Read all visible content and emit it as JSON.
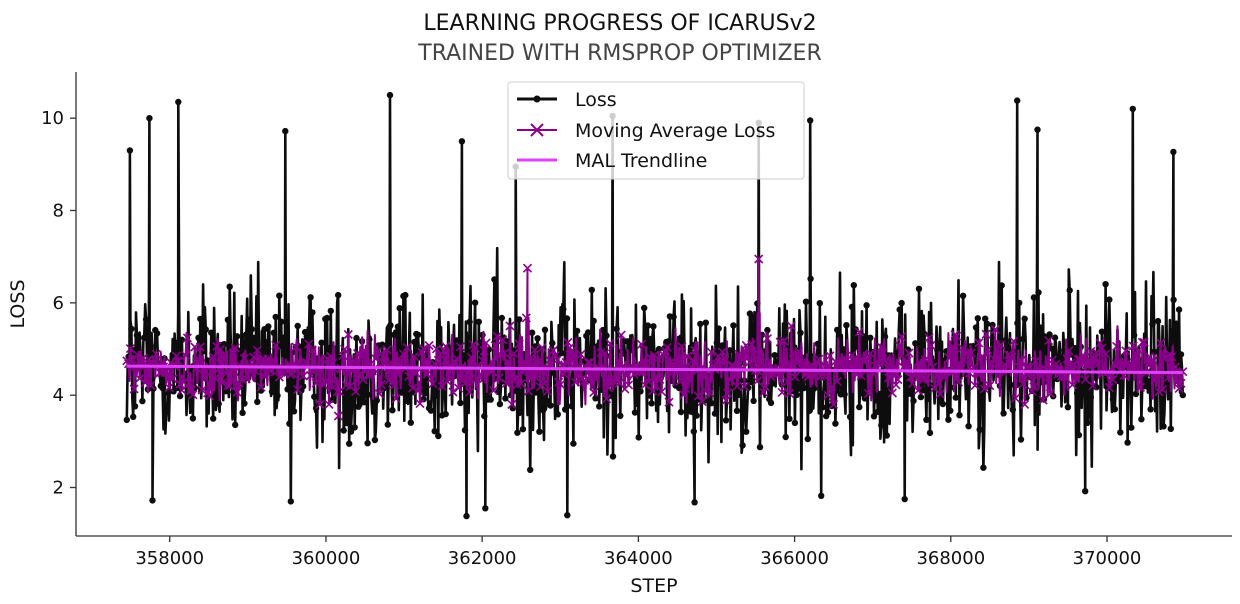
{
  "chart_data": {
    "type": "line",
    "title": "LEARNING PROGRESS OF ICARUSv2",
    "subtitle": "TRAINED WITH RMSPROP OPTIMIZER",
    "xlabel": "STEP",
    "ylabel": "LOSS",
    "xlim": [
      356800,
      371600
    ],
    "ylim": [
      0.95,
      11.0
    ],
    "x_ticks": [
      358000,
      360000,
      362000,
      364000,
      366000,
      368000,
      370000
    ],
    "x_tick_labels": [
      "358000",
      "360000",
      "362000",
      "364000",
      "366000",
      "368000",
      "370000"
    ],
    "y_ticks": [
      2,
      4,
      6,
      8,
      10
    ],
    "y_tick_labels": [
      "2",
      "4",
      "6",
      "8",
      "10"
    ],
    "grid": false,
    "legend_position": "top-center",
    "x_range": [
      357450,
      370970
    ],
    "series": [
      {
        "name": "Loss",
        "color": "#0d0d0d",
        "marker": "circle",
        "mean": 4.6,
        "min": 1.38,
        "max": 10.5,
        "typical_range": [
          2.5,
          7.2
        ],
        "peaks": [
          {
            "x": 357490,
            "y": 9.3
          },
          {
            "x": 357740,
            "y": 10.0
          },
          {
            "x": 358110,
            "y": 10.35
          },
          {
            "x": 359480,
            "y": 9.72
          },
          {
            "x": 360820,
            "y": 10.5
          },
          {
            "x": 361740,
            "y": 9.5
          },
          {
            "x": 362430,
            "y": 8.95
          },
          {
            "x": 363670,
            "y": 10.05
          },
          {
            "x": 365540,
            "y": 9.9
          },
          {
            "x": 366200,
            "y": 9.95
          },
          {
            "x": 368850,
            "y": 10.38
          },
          {
            "x": 369110,
            "y": 9.75
          },
          {
            "x": 370330,
            "y": 10.2
          },
          {
            "x": 370850,
            "y": 9.27
          }
        ],
        "troughs": [
          {
            "x": 357780,
            "y": 1.72
          },
          {
            "x": 359550,
            "y": 1.7
          },
          {
            "x": 361800,
            "y": 1.38
          },
          {
            "x": 362040,
            "y": 1.55
          },
          {
            "x": 363090,
            "y": 1.4
          },
          {
            "x": 364720,
            "y": 1.68
          },
          {
            "x": 366340,
            "y": 1.82
          },
          {
            "x": 367410,
            "y": 1.75
          },
          {
            "x": 369720,
            "y": 1.92
          }
        ]
      },
      {
        "name": "Moving Average Loss",
        "color": "#8b008b",
        "marker": "x",
        "mean": 4.6,
        "typical_range": [
          4.0,
          5.3
        ],
        "spikes": [
          {
            "x": 362580,
            "y": 6.75
          },
          {
            "x": 365540,
            "y": 6.95
          },
          {
            "x": 360160,
            "y": 3.55
          }
        ]
      },
      {
        "name": "MAL Trendline",
        "color": "#e040fb",
        "x": [
          357450,
          370970
        ],
        "y": [
          4.63,
          4.49
        ]
      }
    ]
  }
}
